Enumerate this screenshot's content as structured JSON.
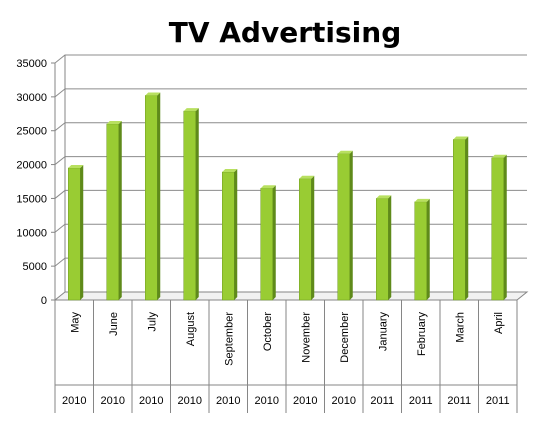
{
  "chart_data": {
    "type": "bar",
    "title": "TV Advertising",
    "categories": [
      "May",
      "June",
      "July",
      "August",
      "September",
      "October",
      "November",
      "December",
      "January",
      "February",
      "March",
      "April"
    ],
    "years": [
      "2010",
      "2010",
      "2010",
      "2010",
      "2010",
      "2010",
      "2010",
      "2010",
      "2011",
      "2011",
      "2011",
      "2011"
    ],
    "values": [
      19500,
      26000,
      30200,
      27900,
      18900,
      16500,
      17900,
      21600,
      15000,
      14500,
      23700,
      21000
    ],
    "ylim": [
      0,
      35000
    ],
    "yticks": [
      "0",
      "5000",
      "10000",
      "15000",
      "20000",
      "25000",
      "30000",
      "35000"
    ],
    "grid": true,
    "legend": "none",
    "colors": {
      "bar_front": "#99cc33",
      "bar_side": "#5f8a1a",
      "bar_top": "#b8e060",
      "grid": "#8c8c8c",
      "axis": "#868686"
    }
  }
}
